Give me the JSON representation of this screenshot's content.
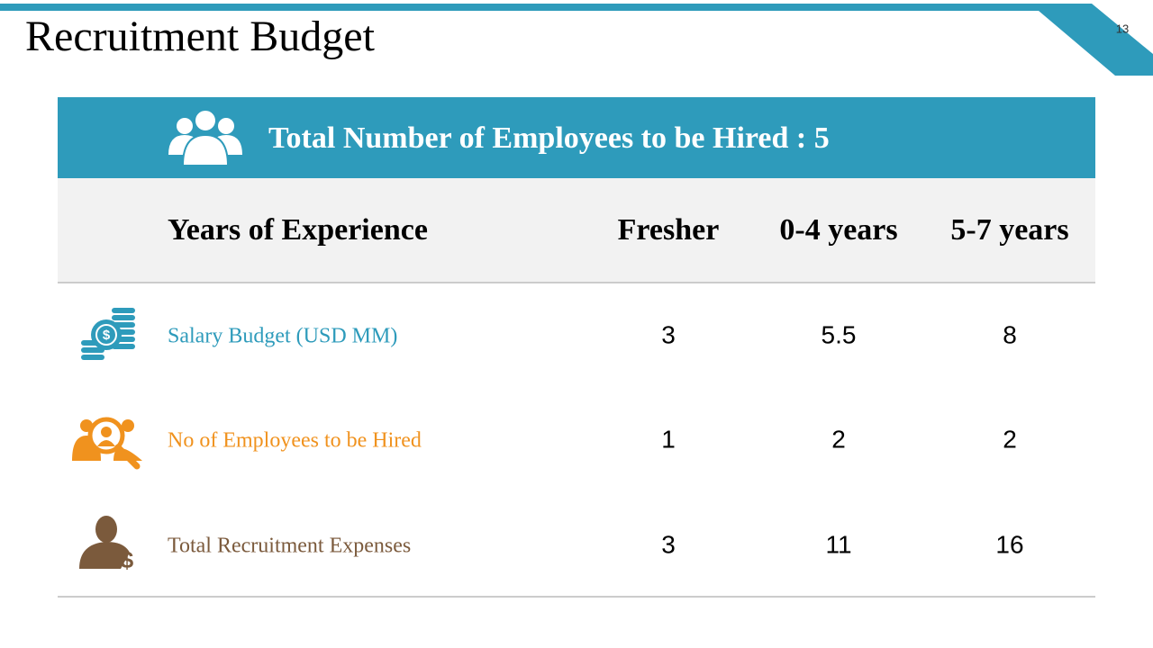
{
  "slide": {
    "title": "Recruitment Budget",
    "page_number": 13
  },
  "table": {
    "banner": "Total Number of Employees to be Hired : 5",
    "header": [
      "Years of Experience",
      "Fresher",
      "0-4 years",
      "5-7 years"
    ],
    "rows": [
      [
        "Salary Budget (USD MM)",
        3,
        5.5,
        8
      ],
      [
        "No of Employees to be Hired",
        1,
        2,
        2
      ],
      [
        "Total Recruitment Expenses",
        3,
        11,
        16
      ]
    ]
  }
}
